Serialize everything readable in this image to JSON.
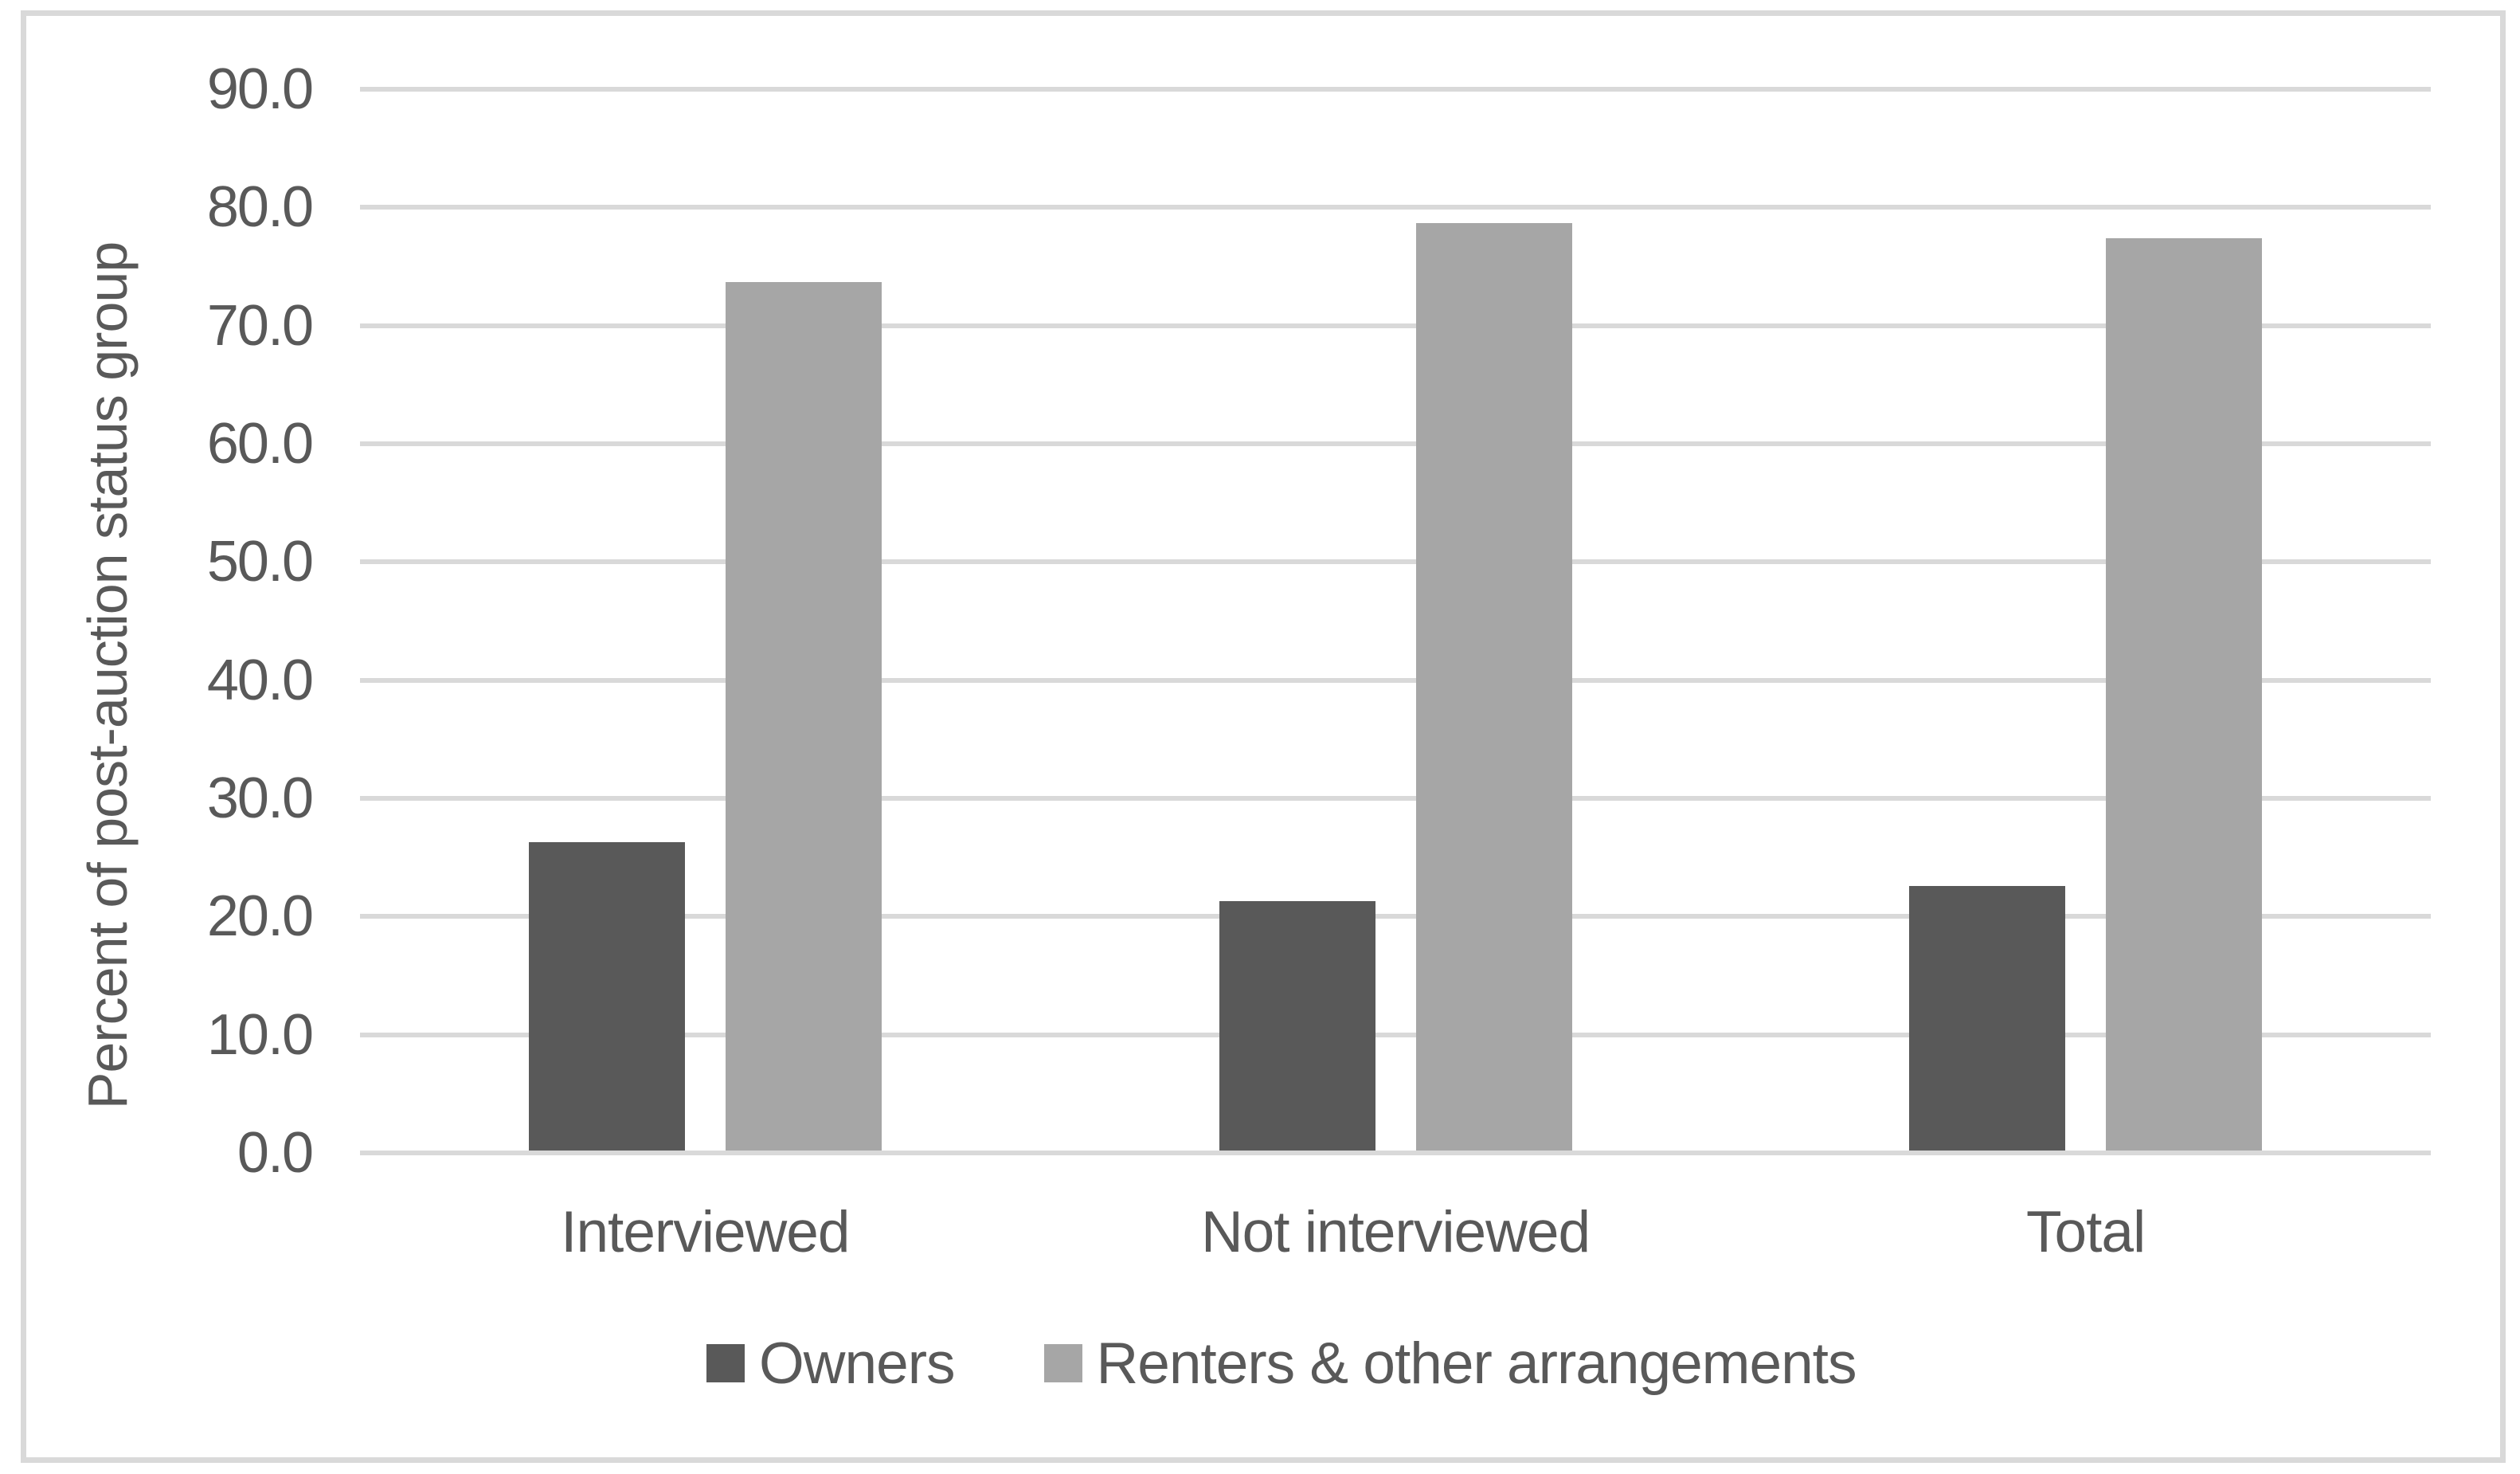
{
  "chart_data": {
    "type": "bar",
    "title": "",
    "categories": [
      "Interviewed",
      "Not interviewed",
      "Total"
    ],
    "series": [
      {
        "name": "Owners",
        "color": "#595959",
        "values": [
          26.3,
          21.3,
          22.6
        ]
      },
      {
        "name": "Renters & other arrangements",
        "color": "#a6a6a6",
        "values": [
          73.7,
          78.7,
          77.4
        ]
      }
    ],
    "xlabel": "",
    "ylabel": "Percent of post-auction status group",
    "ylim": [
      0,
      90
    ],
    "ytick_step": 10,
    "yticks": [
      "0.0",
      "10.0",
      "20.0",
      "30.0",
      "40.0",
      "50.0",
      "60.0",
      "70.0",
      "80.0",
      "90.0"
    ],
    "grid": true,
    "legend_position": "bottom",
    "colors": {
      "background": "#ffffff",
      "frame_border": "#d9d9d9",
      "gridline": "#d9d9d9",
      "axis_text": "#595959",
      "owners_bar": "#595959",
      "renters_bar": "#a6a6a6"
    }
  }
}
